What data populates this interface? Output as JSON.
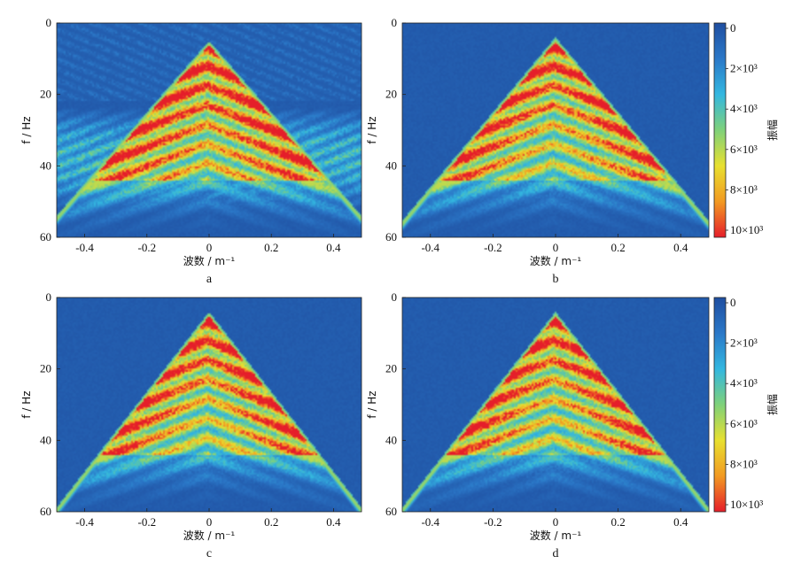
{
  "chart_data": [
    {
      "type": "heatmap",
      "panel_label": "a",
      "xlabel": "波数 / m⁻¹",
      "ylabel": "f / Hz",
      "xlim": [
        -0.49,
        0.49
      ],
      "ylim": [
        0,
        60
      ],
      "y_inverted": true,
      "x_ticks": [
        "-0.4",
        "-0.2",
        "0",
        "0.2",
        "0.4"
      ],
      "y_ticks": [
        "0",
        "20",
        "40",
        "60"
      ],
      "features": {
        "apex_f": 6,
        "slope_hz_per_unit": 100,
        "background_noise": "strong",
        "noise_band_f": [
          22,
          54
        ]
      }
    },
    {
      "type": "heatmap",
      "panel_label": "b",
      "xlabel": "波数 / m⁻¹",
      "ylabel": "f / Hz",
      "xlim": [
        -0.49,
        0.49
      ],
      "ylim": [
        0,
        60
      ],
      "y_inverted": true,
      "x_ticks": [
        "-0.4",
        "-0.2",
        "0",
        "0.2",
        "0.4"
      ],
      "y_ticks": [
        "0",
        "20",
        "40",
        "60"
      ],
      "features": {
        "apex_f": 5,
        "slope_hz_per_unit": 105,
        "background_noise": "low"
      }
    },
    {
      "type": "heatmap",
      "panel_label": "c",
      "xlabel": "波数 / m⁻¹",
      "ylabel": "f / Hz",
      "xlim": [
        -0.49,
        0.49
      ],
      "ylim": [
        0,
        60
      ],
      "y_inverted": true,
      "x_ticks": [
        "-0.4",
        "-0.2",
        "0",
        "0.2",
        "0.4"
      ],
      "y_ticks": [
        "0",
        "20",
        "40",
        "60"
      ],
      "features": {
        "apex_f": 5,
        "slope_hz_per_unit": 112,
        "background_noise": "low"
      }
    },
    {
      "type": "heatmap",
      "panel_label": "d",
      "xlabel": "波数 / m⁻¹",
      "ylabel": "f / Hz",
      "xlim": [
        -0.49,
        0.49
      ],
      "ylim": [
        0,
        60
      ],
      "y_inverted": true,
      "x_ticks": [
        "-0.4",
        "-0.2",
        "0",
        "0.2",
        "0.4"
      ],
      "y_ticks": [
        "0",
        "20",
        "40",
        "60"
      ],
      "features": {
        "apex_f": 5,
        "slope_hz_per_unit": 112,
        "background_noise": "low"
      }
    }
  ],
  "colorbar": {
    "label": "振幅",
    "range": [
      0,
      10000
    ],
    "ticks": [
      "0",
      "2×10³",
      "4×10³",
      "6×10³",
      "8×10³",
      "10×10³"
    ],
    "colors": [
      "#1f4ea0",
      "#2b78c8",
      "#33b7e0",
      "#7fd17a",
      "#e8e030",
      "#f29a22",
      "#e51e2a"
    ]
  }
}
